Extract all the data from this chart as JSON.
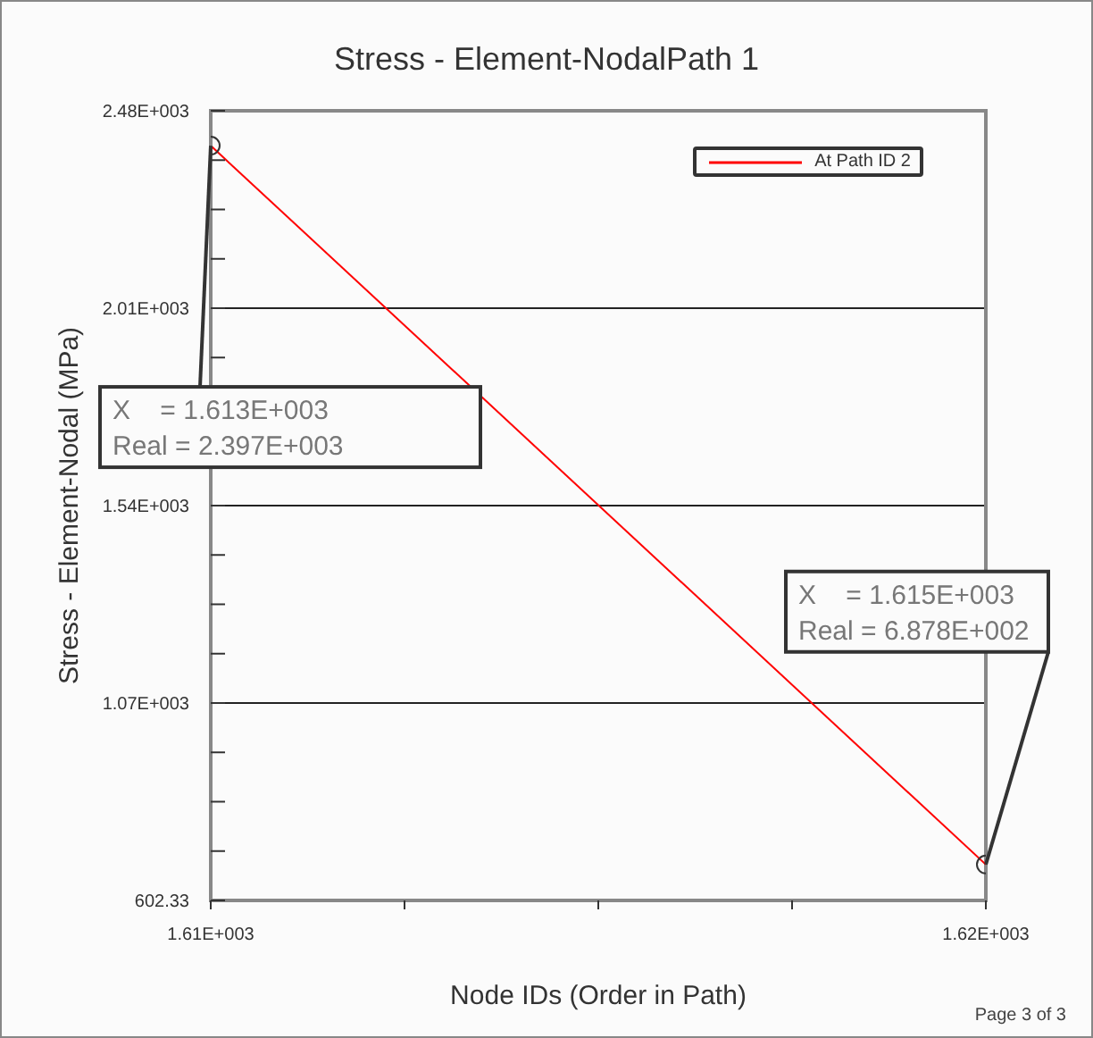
{
  "chart_data": {
    "type": "line",
    "title": "Stress - Element-NodalPath 1",
    "xlabel": "Node IDs (Order in Path)",
    "ylabel": "Stress - Element-Nodal (MPa)",
    "x": [
      1613,
      1615
    ],
    "series": [
      {
        "name": "At Path ID 2",
        "color": "#ff0000",
        "values": [
          2397,
          687.8
        ]
      }
    ],
    "xlim": [
      1613,
      1615
    ],
    "xticks": [
      {
        "value": 1613,
        "label": "1.61E+003"
      },
      {
        "value": 1613.5,
        "label": null
      },
      {
        "value": 1614,
        "label": null
      },
      {
        "value": 1614.5,
        "label": null
      },
      {
        "value": 1615,
        "label": "1.62E+003"
      }
    ],
    "ylim": [
      602.33,
      2480
    ],
    "yticks": [
      602.33,
      {
        "value": 719.7,
        "label": null
      },
      {
        "value": 837.1,
        "label": null
      },
      {
        "value": 954.4,
        "label": null
      },
      {
        "value": 1071.8,
        "label": "1.07E+003"
      },
      {
        "value": 1189.1,
        "label": null
      },
      {
        "value": 1306.5,
        "label": null
      },
      {
        "value": 1423.8,
        "label": null
      },
      {
        "value": 1541.2,
        "label": "1.54E+003"
      },
      {
        "value": 1658.5,
        "label": null
      },
      {
        "value": 1775.9,
        "label": null
      },
      {
        "value": 1893.2,
        "label": null
      },
      {
        "value": 2010.6,
        "label": "2.01E+003"
      },
      {
        "value": 2127.9,
        "label": null
      },
      {
        "value": 2245.3,
        "label": null
      },
      {
        "value": 2362.6,
        "label": null
      },
      {
        "value": 2480,
        "label": "2.48E+003"
      }
    ],
    "grid": "y",
    "legend": "top right",
    "marker": "circle",
    "line_style": "solid",
    "annotations": [
      {
        "text": "X    = 1.613E+003\nReal = 2.397E+003",
        "x": 1613,
        "y": 2397
      },
      {
        "text": "X    = 1.615E+003\nReal = 6.878E+002",
        "x": 1615,
        "y": 687.8
      },
      "Page 3 of 3"
    ]
  }
}
